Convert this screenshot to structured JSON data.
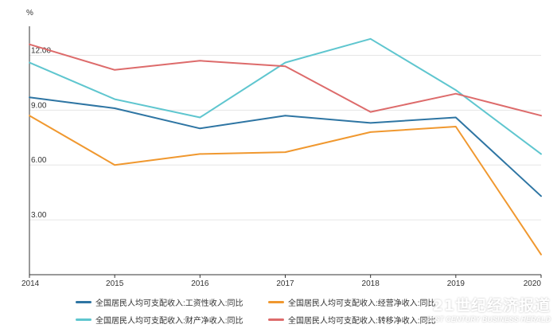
{
  "chart_data": {
    "type": "line",
    "y_unit": "%",
    "x": [
      "2014",
      "2015",
      "2016",
      "2017",
      "2018",
      "2019",
      "2020"
    ],
    "y_ticks": [
      "3.00",
      "6.00",
      "9.00",
      "12.00"
    ],
    "ylim": [
      0,
      13.5
    ],
    "grid": "horizontal",
    "legend_position": "bottom",
    "series": [
      {
        "name": "全国居民人均可支配收入:工资性收入:同比",
        "color": "#2e75a3",
        "values": [
          9.7,
          9.1,
          8.0,
          8.7,
          8.3,
          8.6,
          4.3
        ]
      },
      {
        "name": "全国居民人均可支配收入:经营净收入:同比",
        "color": "#f0982f",
        "values": [
          8.7,
          6.0,
          6.6,
          6.7,
          7.8,
          8.1,
          1.1
        ]
      },
      {
        "name": "全国居民人均可支配收入:财产净收入:同比",
        "color": "#5fc6cf",
        "values": [
          11.6,
          9.6,
          8.6,
          11.6,
          12.9,
          10.1,
          6.6
        ]
      },
      {
        "name": "全国居民人均可支配收入:转移净收入:同比",
        "color": "#dd6b6b",
        "values": [
          12.6,
          11.2,
          11.7,
          11.4,
          8.9,
          9.9,
          8.7
        ]
      }
    ]
  },
  "watermark": {
    "cn": "21世纪经济报道",
    "en": "21ST CENTURY BUSINESS HERALD"
  }
}
